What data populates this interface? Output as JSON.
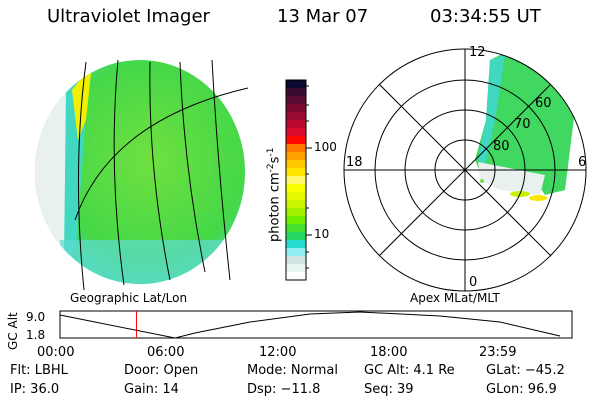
{
  "header": {
    "title": "Ultraviolet Imager",
    "date": "13 Mar 07",
    "time": "03:34:55 UT"
  },
  "left_panel": {
    "label": "Geographic Lat/Lon"
  },
  "right_panel": {
    "label": "Apex MLat/MLT",
    "mlt_labels": [
      "12",
      "6",
      "0",
      "18"
    ],
    "mlat_labels": [
      "80",
      "70",
      "60"
    ]
  },
  "colorbar": {
    "unit_label": "photon cm",
    "unit_sup1": "-2",
    "unit_mid": "s",
    "unit_sup2": "-1",
    "tick_labels": [
      "100",
      "10"
    ],
    "colors": [
      "#0a0a30",
      "#3a0a30",
      "#5a0a30",
      "#7a0a30",
      "#990a30",
      "#bb0a30",
      "#dd0a30",
      "#ff0a00",
      "#ff7a00",
      "#ffa000",
      "#ffc800",
      "#ffe400",
      "#fff870",
      "#f8ff00",
      "#e8fa00",
      "#c8f500",
      "#a0f000",
      "#70ee00",
      "#45e030",
      "#28d860",
      "#28dcd0",
      "#90eef5",
      "#d0e4e4",
      "#e8f4ee",
      "#ffffff"
    ]
  },
  "timeline": {
    "y_axis_label": "GC Alt",
    "y_ticks": [
      "9.0",
      "1.8"
    ],
    "x_ticks": [
      "00:00",
      "06:00",
      "12:00",
      "18:00",
      "23:59"
    ],
    "current_marker_time": "03:34:55",
    "marker_color": "#ff0000"
  },
  "info": {
    "flt": "Flt: LBHL",
    "ip": "IP: 36.0",
    "door": "Door: Open",
    "gain": "Gain: 14",
    "mode": "Mode: Normal",
    "dsp": "Dsp:  −11.8",
    "gc_alt": "GC Alt: 4.1 Re",
    "seq": "Seq: 39",
    "glat": "GLat: −45.2",
    "glon": "GLon:  96.9"
  }
}
